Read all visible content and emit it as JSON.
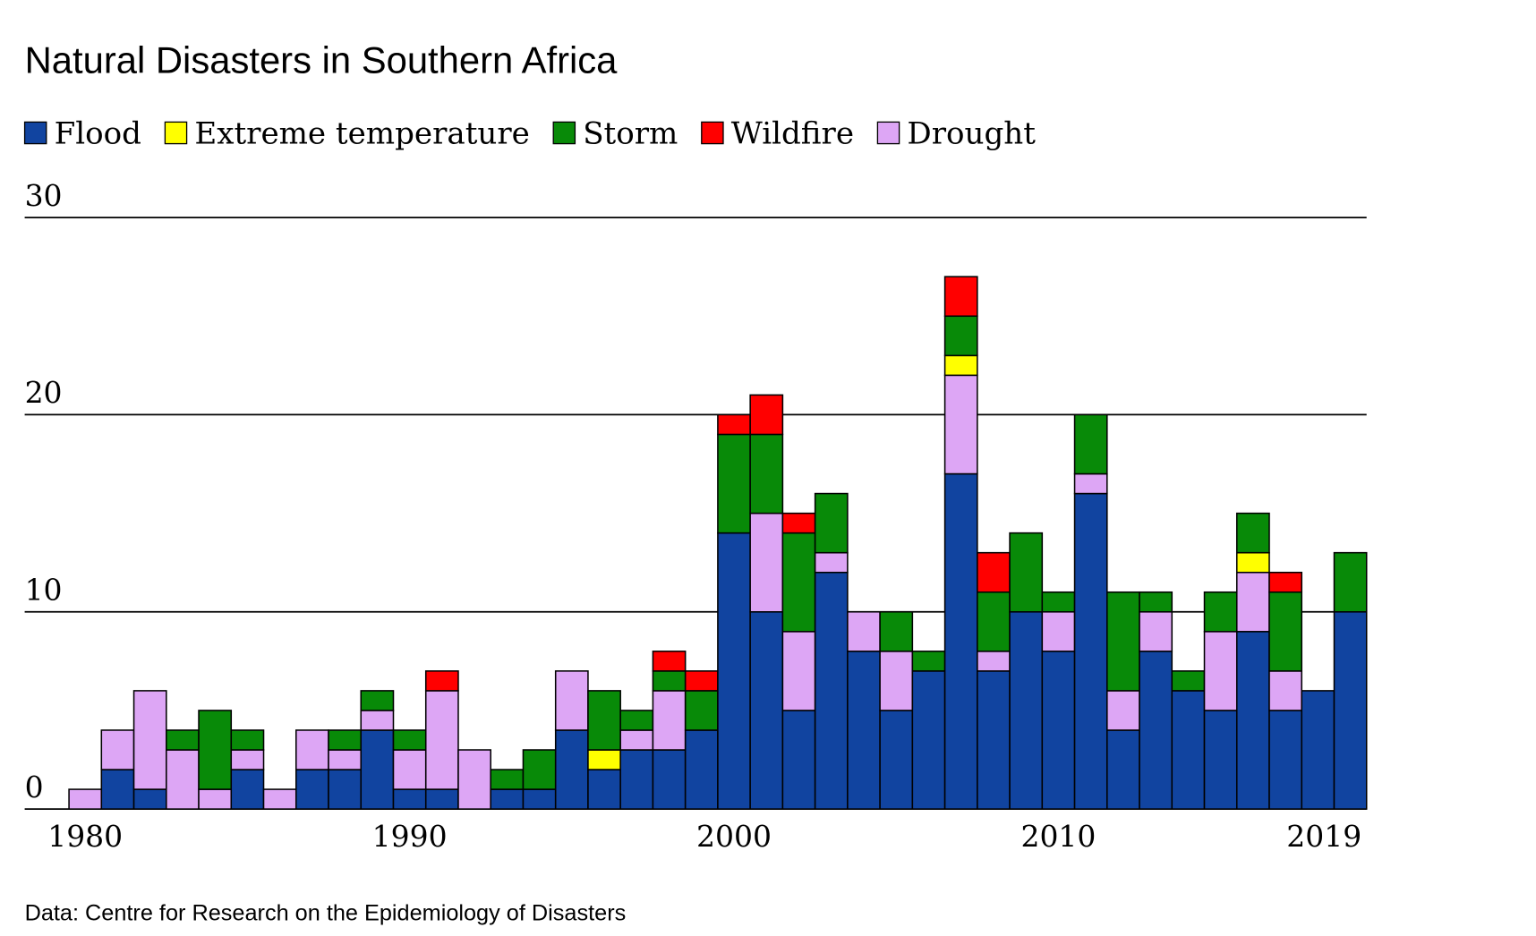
{
  "chart_data": {
    "type": "stacked_bar",
    "title": "Natural Disasters in Southern Africa",
    "source": "Data: Centre for Research on the Epidemiology of Disasters",
    "categories": [
      "1980",
      null,
      null,
      null,
      null,
      null,
      null,
      null,
      null,
      null,
      "1990",
      null,
      null,
      null,
      null,
      null,
      null,
      null,
      null,
      null,
      "2000",
      null,
      null,
      null,
      null,
      null,
      null,
      null,
      null,
      null,
      "2010",
      null,
      null,
      null,
      null,
      null,
      null,
      null,
      null,
      "2019"
    ],
    "series": [
      {
        "name": "Flood",
        "color": "#1144a0",
        "values": [
          0,
          2,
          1,
          0,
          0,
          2,
          0,
          2,
          2,
          4,
          1,
          1,
          0,
          1,
          1,
          4,
          2,
          3,
          3,
          4,
          14,
          10,
          5,
          12,
          8,
          5,
          7,
          17,
          7,
          10,
          8,
          16,
          4,
          8,
          6,
          5,
          9,
          5,
          6,
          10
        ]
      },
      {
        "name": "Extreme temperature",
        "color": "#ffff00",
        "values": [
          0,
          0,
          0,
          0,
          0,
          0,
          0,
          0,
          0,
          0,
          0,
          0,
          0,
          0,
          0,
          0,
          1,
          0,
          0,
          0,
          0,
          0,
          0,
          0,
          0,
          0,
          0,
          1,
          0,
          0,
          0,
          0,
          0,
          0,
          0,
          0,
          1,
          0,
          0,
          0
        ]
      },
      {
        "name": "Storm",
        "color": "#088a08",
        "values": [
          0,
          0,
          0,
          1,
          4,
          1,
          0,
          0,
          1,
          1,
          1,
          0,
          0,
          1,
          2,
          0,
          3,
          1,
          1,
          2,
          5,
          4,
          5,
          3,
          0,
          2,
          1,
          2,
          3,
          4,
          1,
          3,
          5,
          1,
          1,
          2,
          2,
          4,
          0,
          3
        ]
      },
      {
        "name": "Wildfire",
        "color": "#ff0000",
        "values": [
          0,
          0,
          0,
          0,
          0,
          0,
          0,
          0,
          0,
          0,
          0,
          1,
          0,
          0,
          0,
          0,
          0,
          0,
          1,
          1,
          1,
          2,
          1,
          0,
          0,
          0,
          0,
          2,
          2,
          0,
          0,
          0,
          0,
          0,
          0,
          0,
          0,
          1,
          0,
          0
        ]
      },
      {
        "name": "Drought",
        "color": "#dda6f5",
        "values": [
          1,
          2,
          5,
          3,
          1,
          1,
          1,
          2,
          1,
          1,
          2,
          5,
          3,
          0,
          0,
          3,
          0,
          1,
          3,
          0,
          0,
          5,
          4,
          1,
          2,
          3,
          0,
          5,
          1,
          0,
          2,
          1,
          2,
          2,
          0,
          4,
          3,
          2,
          0,
          0
        ]
      }
    ],
    "ylim": [
      0,
      30
    ],
    "yticks": [
      0,
      10,
      20,
      30
    ],
    "grid": true
  }
}
